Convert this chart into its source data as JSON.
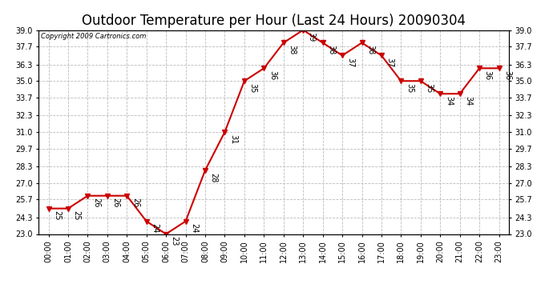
{
  "title": "Outdoor Temperature per Hour (Last 24 Hours) 20090304",
  "copyright": "Copyright 2009 Cartronics.com",
  "hours": [
    "00:00",
    "01:00",
    "02:00",
    "03:00",
    "04:00",
    "05:00",
    "06:00",
    "07:00",
    "08:00",
    "09:00",
    "10:00",
    "11:00",
    "12:00",
    "13:00",
    "14:00",
    "15:00",
    "16:00",
    "17:00",
    "18:00",
    "19:00",
    "20:00",
    "21:00",
    "22:00",
    "23:00"
  ],
  "values": [
    25,
    25,
    26,
    26,
    26,
    24,
    23,
    24,
    28,
    31,
    35,
    36,
    38,
    39,
    38,
    37,
    38,
    37,
    35,
    35,
    34,
    34,
    36,
    36
  ],
  "ylim_min": 23.0,
  "ylim_max": 39.0,
  "yticks": [
    23.0,
    24.3,
    25.7,
    27.0,
    28.3,
    29.7,
    31.0,
    32.3,
    33.7,
    35.0,
    36.3,
    37.7,
    39.0
  ],
  "ytick_labels": [
    "23.0",
    "24.3",
    "25.7",
    "27.0",
    "28.3",
    "29.7",
    "31.0",
    "32.3",
    "33.7",
    "35.0",
    "36.3",
    "37.7",
    "39.0"
  ],
  "line_color": "#cc0000",
  "marker_color": "#cc0000",
  "bg_color": "#ffffff",
  "grid_color": "#bbbbbb",
  "title_fontsize": 12,
  "label_fontsize": 7,
  "annot_fontsize": 7,
  "copyright_fontsize": 6
}
